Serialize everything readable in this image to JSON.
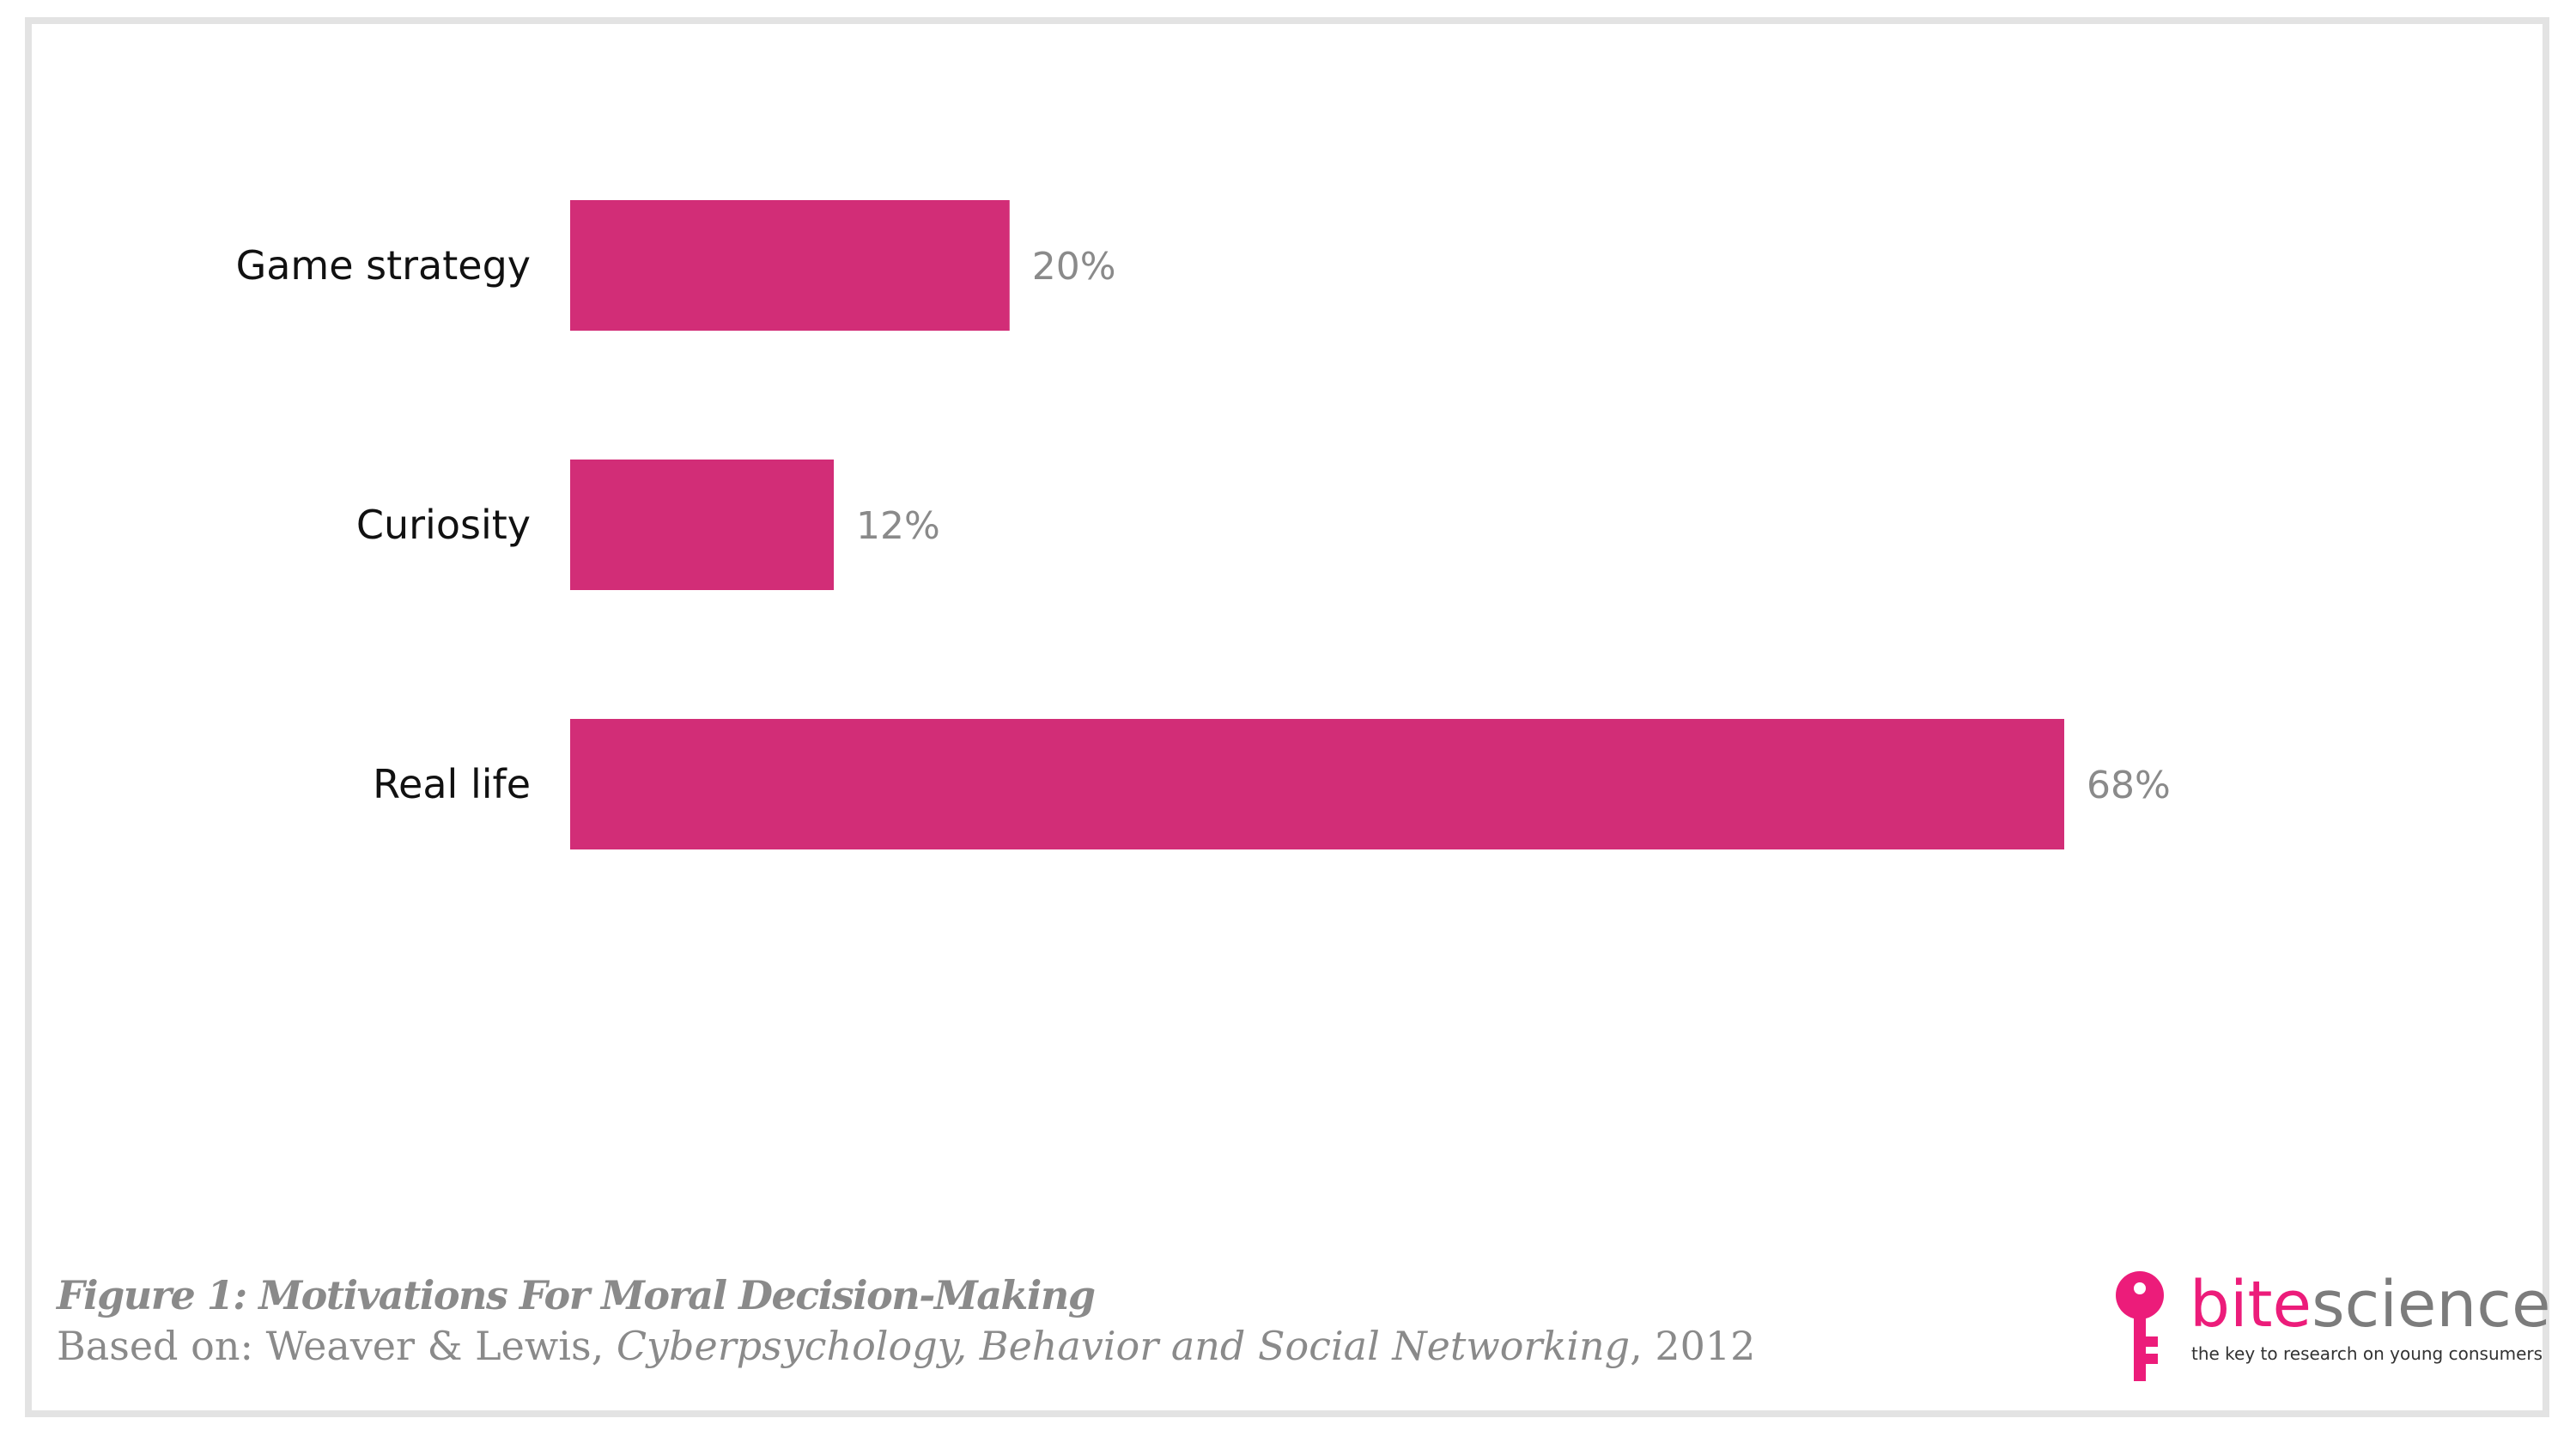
{
  "colors": {
    "bar": "#d22d77",
    "brand_pink": "#ec1c7a",
    "brand_gray": "#7c7c7c",
    "caption_gray": "#8a8a8a",
    "frame": "#e3e3e3"
  },
  "chart_data": {
    "type": "bar",
    "orientation": "horizontal",
    "categories": [
      "Game strategy",
      "Curiosity",
      "Real life"
    ],
    "values": [
      20,
      12,
      68
    ],
    "value_labels": [
      "20%",
      "12%",
      "68%"
    ],
    "unit": "%",
    "xlim": [
      0,
      100
    ],
    "grid": false,
    "legend": "none"
  },
  "caption": {
    "title": "Figure 1: Motivations For Moral Decision-Making",
    "source_prefix": "Based on: Weaver & Lewis, ",
    "source_journal": "Cyberpsychology, Behavior and Social Networking",
    "source_suffix": ", 2012"
  },
  "logo": {
    "icon": "key-icon",
    "name_part1": "bite",
    "name_part2": "science",
    "tagline": "the key to research on young consumers"
  }
}
